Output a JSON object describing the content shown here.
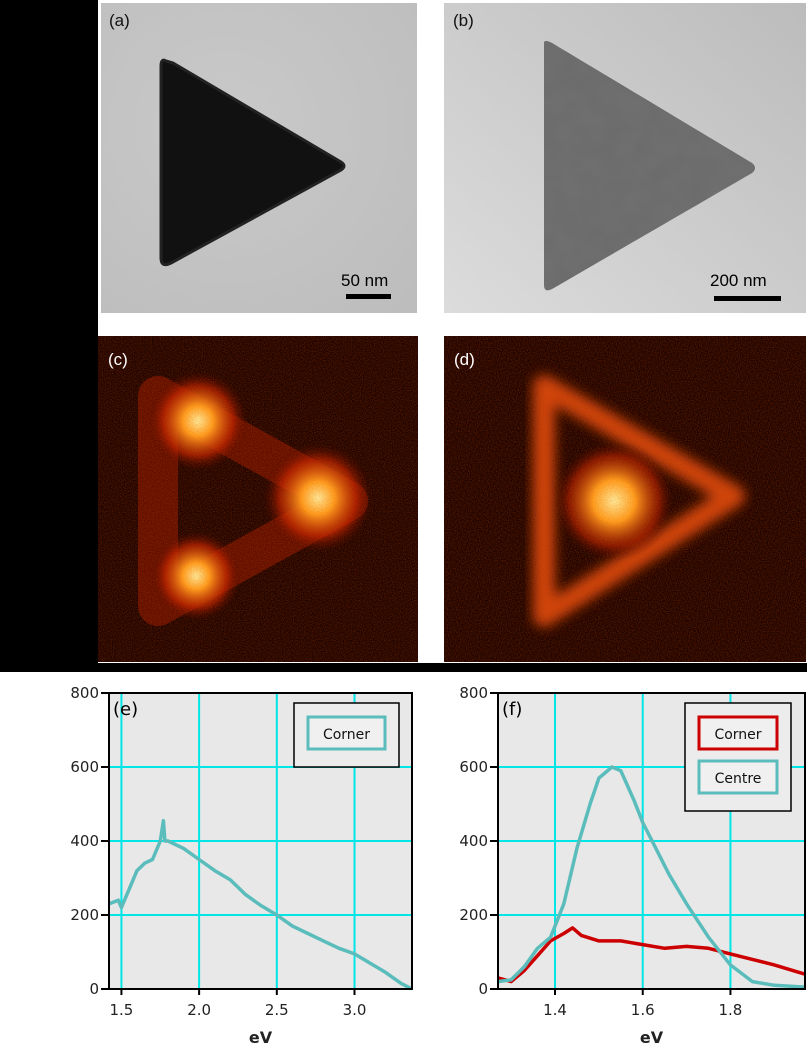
{
  "panels": {
    "a": {
      "label": "(a)",
      "scale_text": "50 nm"
    },
    "b": {
      "label": "(b)",
      "scale_text": "200 nm"
    },
    "c": {
      "label": "(c)"
    },
    "d": {
      "label": "(d)"
    },
    "e": {
      "label": "(e)"
    },
    "f": {
      "label": "(f)"
    }
  },
  "colors": {
    "cyan_series": "#5bbcbc",
    "red_series": "#cc0000",
    "grid": "#00e5e5",
    "plot_bg": "#e8e8e8"
  },
  "chart_data": [
    {
      "type": "line",
      "panel": "(e)",
      "xlabel": "eV",
      "ylabel": "",
      "xlim": [
        1.42,
        3.37
      ],
      "ylim": [
        0,
        800
      ],
      "xticks": [
        "1.5",
        "2.0",
        "2.5",
        "3.0"
      ],
      "yticks": [
        "0",
        "200",
        "400",
        "600",
        "800"
      ],
      "grid": true,
      "legend": [
        "Corner"
      ],
      "legend_position": "upper right",
      "series": [
        {
          "name": "Corner",
          "color": "#5bbcbc",
          "x": [
            1.42,
            1.48,
            1.5,
            1.55,
            1.6,
            1.65,
            1.7,
            1.75,
            1.77,
            1.78,
            1.8,
            1.9,
            2.0,
            2.1,
            2.2,
            2.3,
            2.4,
            2.5,
            2.6,
            2.7,
            2.8,
            2.9,
            3.0,
            3.1,
            3.2,
            3.3,
            3.37
          ],
          "y": [
            230,
            240,
            220,
            270,
            320,
            340,
            350,
            400,
            455,
            400,
            400,
            380,
            350,
            320,
            295,
            255,
            225,
            200,
            170,
            150,
            130,
            110,
            95,
            70,
            45,
            15,
            0
          ]
        }
      ]
    },
    {
      "type": "line",
      "panel": "(f)",
      "xlabel": "eV",
      "ylabel": "",
      "xlim": [
        1.27,
        1.97
      ],
      "ylim": [
        0,
        800
      ],
      "xticks": [
        "1.4",
        "1.6",
        "1.8"
      ],
      "yticks": [
        "0",
        "200",
        "400",
        "600",
        "800"
      ],
      "grid": true,
      "legend": [
        "Corner",
        "Centre"
      ],
      "legend_position": "upper right",
      "series": [
        {
          "name": "Corner",
          "color": "#cc0000",
          "x": [
            1.27,
            1.3,
            1.33,
            1.36,
            1.39,
            1.42,
            1.44,
            1.46,
            1.5,
            1.55,
            1.6,
            1.65,
            1.7,
            1.75,
            1.8,
            1.85,
            1.9,
            1.97
          ],
          "y": [
            30,
            20,
            50,
            90,
            130,
            150,
            165,
            145,
            130,
            130,
            120,
            110,
            115,
            110,
            95,
            80,
            65,
            40
          ]
        },
        {
          "name": "Centre",
          "color": "#5bbcbc",
          "x": [
            1.27,
            1.3,
            1.33,
            1.36,
            1.39,
            1.4,
            1.42,
            1.45,
            1.48,
            1.5,
            1.53,
            1.55,
            1.58,
            1.6,
            1.63,
            1.66,
            1.7,
            1.75,
            1.8,
            1.85,
            1.9,
            1.97
          ],
          "y": [
            20,
            25,
            60,
            110,
            140,
            170,
            230,
            380,
            500,
            570,
            600,
            590,
            510,
            450,
            380,
            310,
            230,
            140,
            65,
            20,
            10,
            5
          ]
        }
      ]
    }
  ]
}
